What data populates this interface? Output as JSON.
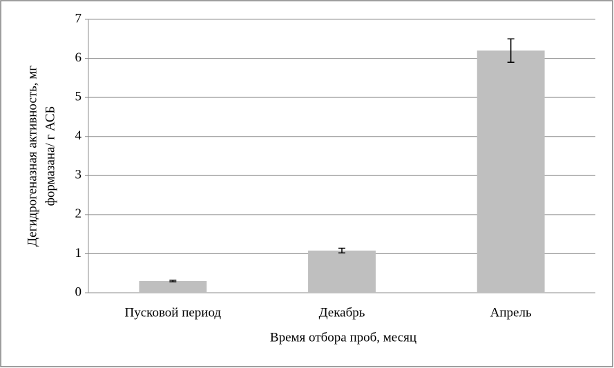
{
  "chart_data": {
    "type": "bar",
    "y_label": [
      "Дегидрогеназная активность, мг",
      "формазана/ г АСБ"
    ],
    "x_label": "Время отбора проб, месяц",
    "categories": [
      "Пусковой период",
      "Декабрь",
      "Апрель"
    ],
    "values": [
      0.3,
      1.08,
      6.2
    ],
    "errors": [
      0.02,
      0.06,
      0.3
    ],
    "color": "#bfbfbf",
    "ylim": [
      0,
      7
    ],
    "yticks": [
      0,
      1,
      2,
      3,
      4,
      5,
      6,
      7
    ],
    "grid": true
  }
}
